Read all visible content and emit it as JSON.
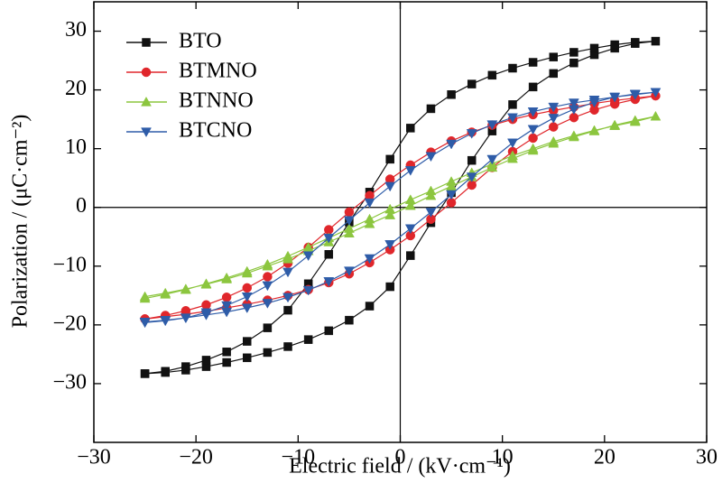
{
  "chart_data": {
    "type": "line",
    "xlabel": "Electric field / (kV·cm⁻¹)",
    "ylabel": "Polarization / (μC·cm⁻²)",
    "x": [
      -25,
      -23,
      -21,
      -19,
      -17,
      -15,
      -13,
      -11,
      -9,
      -7,
      -5,
      -3,
      -1,
      1,
      3,
      5,
      7,
      9,
      11,
      13,
      15,
      17,
      19,
      21,
      23,
      25,
      23,
      21,
      19,
      17,
      15,
      13,
      11,
      9,
      7,
      5,
      3,
      1,
      -1,
      -3,
      -5,
      -7,
      -9,
      -11,
      -13,
      -15,
      -17,
      -19,
      -21,
      -23,
      -25
    ],
    "series": [
      {
        "name": "BTO",
        "color": "#111111",
        "marker": "square",
        "values": [
          -28.3,
          -28.1,
          -27.7,
          -27.1,
          -26.4,
          -25.6,
          -24.7,
          -23.7,
          -22.5,
          -21.0,
          -19.2,
          -16.8,
          -13.5,
          -8.2,
          -2.6,
          2.5,
          8,
          13,
          17.5,
          20.5,
          22.8,
          24.6,
          26,
          27.1,
          27.9,
          28.3,
          28.1,
          27.7,
          27.1,
          26.4,
          25.6,
          24.7,
          23.7,
          22.5,
          21.0,
          19.2,
          16.8,
          13.5,
          8.2,
          2.6,
          -2.5,
          -8,
          -13,
          -17.5,
          -20.5,
          -22.8,
          -24.6,
          -26,
          -27.1,
          -27.9,
          -28.3
        ]
      },
      {
        "name": "BTMNO",
        "color": "#e0262b",
        "marker": "circle",
        "values": [
          -19.0,
          -18.6,
          -18.2,
          -17.7,
          -17.1,
          -16.5,
          -15.8,
          -15.0,
          -14.0,
          -12.8,
          -11.3,
          -9.4,
          -7.2,
          -4.8,
          -2.0,
          0.8,
          3.8,
          6.8,
          9.5,
          11.8,
          13.7,
          15.3,
          16.6,
          17.6,
          18.4,
          19.0,
          18.6,
          18.2,
          17.7,
          17.1,
          16.5,
          15.8,
          15.0,
          14.0,
          12.8,
          11.3,
          9.4,
          7.2,
          4.8,
          2.0,
          -0.8,
          -3.8,
          -6.8,
          -9.5,
          -11.8,
          -13.7,
          -15.3,
          -16.6,
          -17.6,
          -18.4,
          -19.0
        ]
      },
      {
        "name": "BTNNO",
        "color": "#8cc63f",
        "marker": "triangle-up",
        "values": [
          -15.2,
          -14.6,
          -13.9,
          -13.1,
          -12.2,
          -11.2,
          -10.0,
          -8.8,
          -7.4,
          -5.9,
          -4.4,
          -2.8,
          -1.3,
          0.3,
          2.0,
          3.6,
          5.2,
          6.8,
          8.3,
          9.7,
          10.9,
          12.0,
          13.0,
          14.0,
          14.8,
          15.5,
          14.6,
          13.9,
          13.1,
          12.2,
          11.2,
          10.0,
          8.8,
          7.4,
          5.9,
          4.4,
          2.8,
          1.3,
          -0.3,
          -2.0,
          -3.6,
          -5.2,
          -6.8,
          -8.3,
          -9.7,
          -10.9,
          -12.0,
          -13.0,
          -14.0,
          -14.8,
          -15.5
        ]
      },
      {
        "name": "BTCNO",
        "color": "#2e5ca8",
        "marker": "triangle-down",
        "values": [
          -19.5,
          -19.2,
          -18.8,
          -18.3,
          -17.8,
          -17.1,
          -16.3,
          -15.3,
          -14.1,
          -12.6,
          -10.8,
          -8.7,
          -6.3,
          -3.6,
          -0.8,
          2.2,
          5.2,
          8.2,
          11.0,
          13.3,
          15.2,
          16.7,
          17.9,
          18.8,
          19.3,
          19.6,
          19.2,
          18.8,
          18.3,
          17.8,
          17.1,
          16.3,
          15.3,
          14.1,
          12.6,
          10.8,
          8.7,
          6.3,
          3.6,
          0.8,
          -2.2,
          -5.2,
          -8.2,
          -11.0,
          -13.3,
          -15.2,
          -16.7,
          -17.9,
          -18.8,
          -19.3,
          -19.6
        ]
      }
    ],
    "xlim": [
      -30,
      30
    ],
    "xticks": [
      {
        "value": -30,
        "label": "−30"
      },
      {
        "value": -20,
        "label": "−20"
      },
      {
        "value": -10,
        "label": "−10"
      },
      0,
      10,
      20,
      30
    ],
    "ylim": [
      -40,
      35
    ],
    "yticks": [
      {
        "value": -30,
        "label": "−30"
      },
      {
        "value": -20,
        "label": "−20"
      },
      {
        "value": -10,
        "label": "−10"
      },
      0,
      10,
      20,
      30
    ],
    "legend": "upper-left"
  }
}
